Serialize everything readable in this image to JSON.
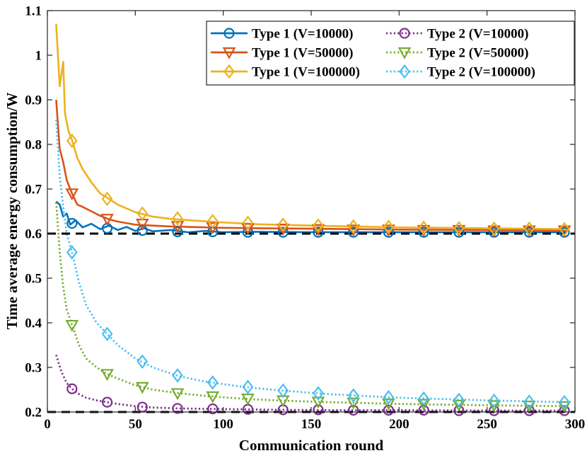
{
  "chart_data": {
    "type": "line",
    "title": "",
    "xlabel": "Communication round",
    "ylabel": "Time average energy consumption/W",
    "xlim": [
      0,
      300
    ],
    "ylim": [
      0.2,
      1.1
    ],
    "xticks": [
      0,
      50,
      100,
      150,
      200,
      250,
      300
    ],
    "yticks": [
      0.2,
      0.3,
      0.4,
      0.5,
      0.6,
      0.7,
      0.8,
      0.9,
      1.0,
      1.1
    ],
    "xtick_labels": [
      "0",
      "50",
      "100",
      "150",
      "200",
      "250",
      "300"
    ],
    "ytick_labels": [
      "0.2",
      "0.3",
      "0.4",
      "0.5",
      "0.6",
      "0.7",
      "0.8",
      "0.9",
      "1",
      "1.1"
    ],
    "grid": false,
    "legend_position": "top-right",
    "reference_lines": [
      {
        "name": "lower-bound-type1",
        "y": 0.6,
        "style": "dashed",
        "color": "#000000"
      },
      {
        "name": "lower-bound-type2",
        "y": 0.2,
        "style": "dashed",
        "color": "#000000"
      }
    ],
    "series": [
      {
        "name": "Type 1 (V=10000)",
        "color": "#0072BD",
        "style": "solid",
        "marker": "circle",
        "x": [
          5,
          7,
          9,
          11,
          13,
          16,
          20,
          25,
          30,
          35,
          40,
          45,
          50,
          55,
          60,
          70,
          80,
          90,
          100,
          120,
          150,
          200,
          250,
          295
        ],
        "y": [
          0.672,
          0.665,
          0.638,
          0.645,
          0.62,
          0.63,
          0.614,
          0.622,
          0.61,
          0.618,
          0.608,
          0.615,
          0.606,
          0.612,
          0.605,
          0.608,
          0.603,
          0.606,
          0.603,
          0.604,
          0.603,
          0.603,
          0.603,
          0.603
        ],
        "markers_x": [
          14,
          34,
          54,
          74,
          94,
          114,
          134,
          154,
          174,
          194,
          214,
          234,
          254,
          274,
          294
        ],
        "markers_y": [
          0.623,
          0.612,
          0.607,
          0.604,
          0.604,
          0.603,
          0.603,
          0.603,
          0.603,
          0.603,
          0.603,
          0.603,
          0.603,
          0.603,
          0.603
        ]
      },
      {
        "name": "Type 1 (V=50000)",
        "color": "#D95319",
        "style": "solid",
        "marker": "triangle-down",
        "x": [
          5,
          7,
          9,
          11,
          14,
          17,
          20,
          25,
          30,
          35,
          40,
          50,
          60,
          70,
          80,
          100,
          120,
          150,
          175,
          200,
          250,
          295
        ],
        "y": [
          0.9,
          0.79,
          0.76,
          0.72,
          0.69,
          0.665,
          0.66,
          0.65,
          0.64,
          0.632,
          0.627,
          0.62,
          0.618,
          0.616,
          0.615,
          0.613,
          0.612,
          0.611,
          0.61,
          0.609,
          0.608,
          0.607
        ],
        "markers_x": [
          14,
          34,
          54,
          74,
          94,
          114,
          134,
          154,
          174,
          194,
          214,
          234,
          254,
          274,
          294
        ],
        "markers_y": [
          0.69,
          0.633,
          0.622,
          0.617,
          0.614,
          0.612,
          0.611,
          0.61,
          0.609,
          0.609,
          0.608,
          0.608,
          0.607,
          0.607,
          0.607
        ]
      },
      {
        "name": "Type 1 (V=100000)",
        "color": "#EDB120",
        "style": "solid",
        "marker": "diamond",
        "x": [
          5,
          7,
          9,
          10,
          12,
          14,
          17,
          20,
          25,
          30,
          35,
          40,
          50,
          60,
          70,
          80,
          100,
          120,
          150,
          175,
          200,
          250,
          295
        ],
        "y": [
          1.07,
          0.93,
          0.985,
          0.87,
          0.83,
          0.81,
          0.77,
          0.745,
          0.715,
          0.69,
          0.678,
          0.665,
          0.648,
          0.638,
          0.633,
          0.63,
          0.625,
          0.621,
          0.618,
          0.616,
          0.614,
          0.612,
          0.61
        ],
        "markers_x": [
          14,
          34,
          54,
          74,
          94,
          114,
          134,
          154,
          174,
          194,
          214,
          234,
          254,
          274,
          294
        ],
        "markers_y": [
          0.808,
          0.678,
          0.645,
          0.634,
          0.628,
          0.624,
          0.62,
          0.618,
          0.616,
          0.615,
          0.613,
          0.612,
          0.611,
          0.611,
          0.61
        ]
      },
      {
        "name": "Type 2 (V=10000)",
        "color": "#7E2F8E",
        "style": "dotted",
        "marker": "circle",
        "x": [
          5,
          8,
          11,
          14,
          18,
          22,
          28,
          34,
          40,
          50,
          60,
          75,
          90,
          110,
          130,
          160,
          200,
          250,
          295
        ],
        "y": [
          0.328,
          0.29,
          0.265,
          0.252,
          0.24,
          0.232,
          0.226,
          0.222,
          0.218,
          0.213,
          0.21,
          0.208,
          0.207,
          0.206,
          0.205,
          0.204,
          0.204,
          0.203,
          0.203
        ],
        "markers_x": [
          14,
          34,
          54,
          74,
          94,
          114,
          134,
          154,
          174,
          194,
          214,
          234,
          254,
          274,
          294
        ],
        "markers_y": [
          0.252,
          0.222,
          0.211,
          0.208,
          0.207,
          0.206,
          0.205,
          0.205,
          0.204,
          0.204,
          0.204,
          0.203,
          0.203,
          0.203,
          0.203
        ]
      },
      {
        "name": "Type 2 (V=50000)",
        "color": "#77AC30",
        "style": "dotted",
        "marker": "triangle-down",
        "x": [
          5,
          7,
          9,
          11,
          14,
          18,
          22,
          28,
          34,
          40,
          50,
          60,
          75,
          90,
          110,
          130,
          160,
          200,
          250,
          295
        ],
        "y": [
          0.67,
          0.56,
          0.48,
          0.43,
          0.395,
          0.35,
          0.32,
          0.3,
          0.285,
          0.275,
          0.26,
          0.25,
          0.242,
          0.236,
          0.23,
          0.226,
          0.222,
          0.218,
          0.215,
          0.213
        ],
        "markers_x": [
          14,
          34,
          54,
          74,
          94,
          114,
          134,
          154,
          174,
          194,
          214,
          234,
          254,
          274,
          294
        ],
        "markers_y": [
          0.395,
          0.285,
          0.256,
          0.242,
          0.235,
          0.23,
          0.226,
          0.223,
          0.221,
          0.219,
          0.218,
          0.216,
          0.215,
          0.214,
          0.213
        ]
      },
      {
        "name": "Type 2 (V=100000)",
        "color": "#4DBEEE",
        "style": "dotted",
        "marker": "diamond",
        "x": [
          5,
          7,
          9,
          11,
          14,
          18,
          22,
          28,
          34,
          40,
          50,
          60,
          75,
          90,
          110,
          130,
          160,
          200,
          250,
          295
        ],
        "y": [
          0.855,
          0.73,
          0.66,
          0.6,
          0.558,
          0.49,
          0.44,
          0.4,
          0.375,
          0.35,
          0.32,
          0.3,
          0.28,
          0.268,
          0.257,
          0.249,
          0.24,
          0.232,
          0.226,
          0.222
        ],
        "markers_x": [
          14,
          34,
          54,
          74,
          94,
          114,
          134,
          154,
          174,
          194,
          214,
          234,
          254,
          274,
          294
        ],
        "markers_y": [
          0.558,
          0.375,
          0.313,
          0.282,
          0.266,
          0.256,
          0.248,
          0.242,
          0.237,
          0.233,
          0.23,
          0.227,
          0.225,
          0.223,
          0.222
        ]
      }
    ]
  }
}
